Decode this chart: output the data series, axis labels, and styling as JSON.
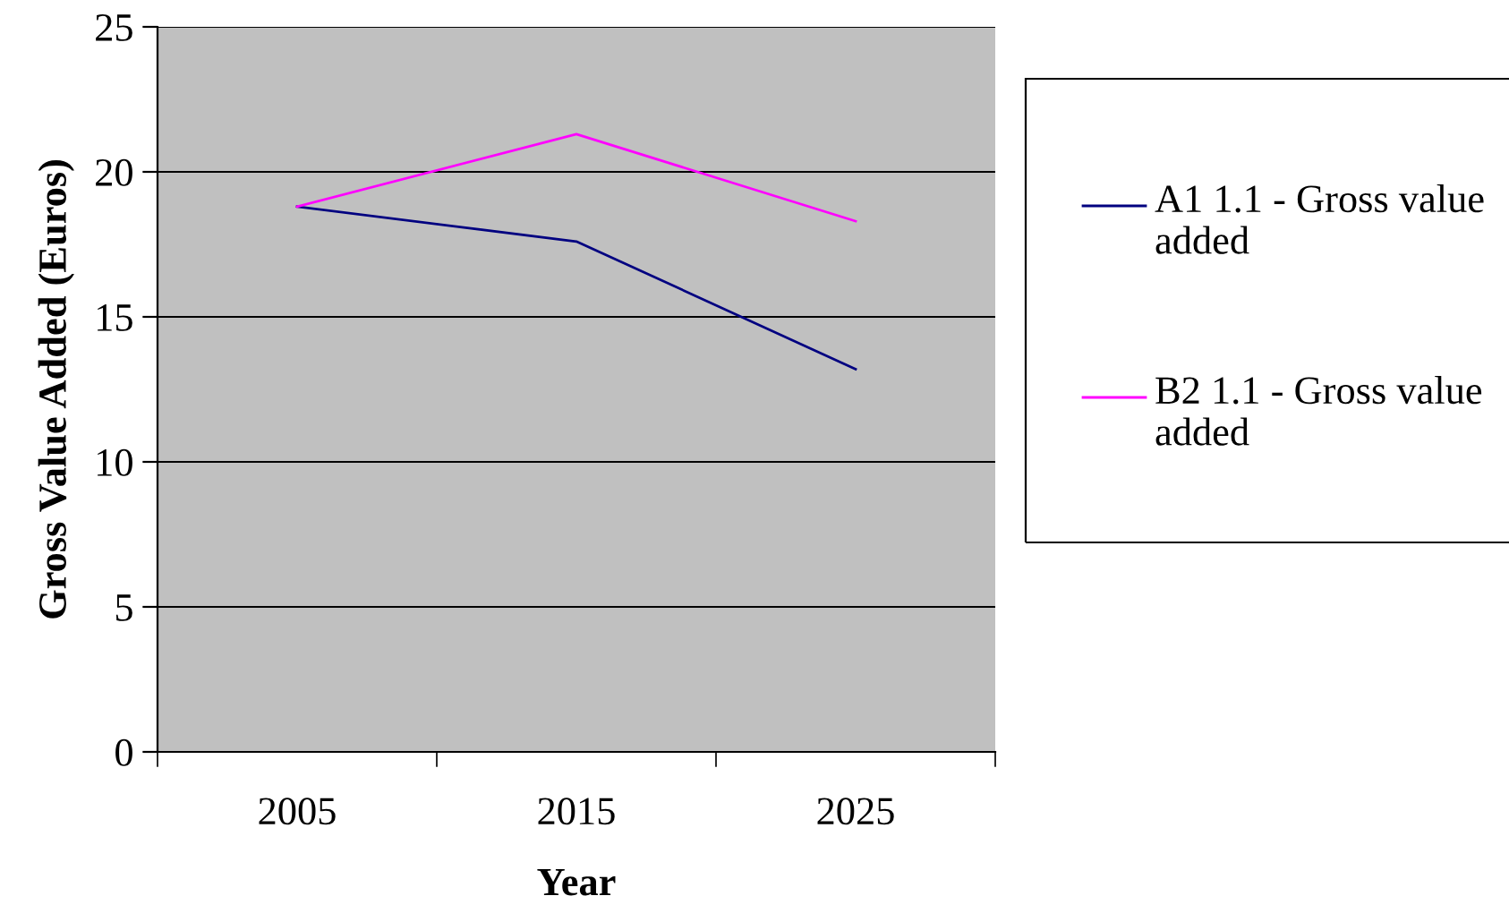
{
  "chart_data": {
    "type": "line",
    "xlabel": "Year",
    "ylabel": "Gross Value Added (Euros)",
    "categories": [
      "2005",
      "2015",
      "2025"
    ],
    "series": [
      {
        "name": "A1 1.1 - Gross value added",
        "color": "#000080",
        "values": [
          18.8,
          17.6,
          13.2
        ]
      },
      {
        "name": "B2 1.1 - Gross value added",
        "color": "#ff00ff",
        "values": [
          18.8,
          21.3,
          18.3
        ]
      }
    ],
    "ylim": [
      0,
      25
    ],
    "yticks": [
      0,
      5,
      10,
      15,
      20,
      25
    ],
    "grid": "y",
    "legend": "right",
    "marker": "none",
    "line_style": "solid"
  }
}
